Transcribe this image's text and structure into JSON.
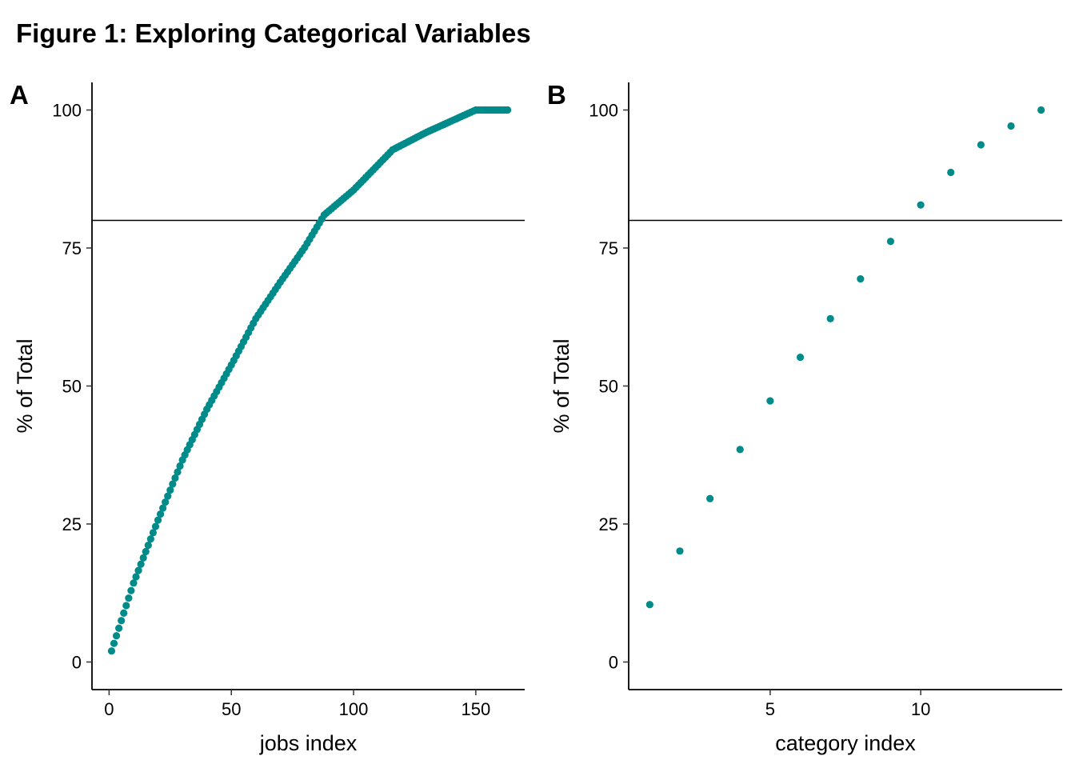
{
  "title": "Figure 1: Exploring Categorical Variables",
  "chart_data": [
    {
      "type": "scatter",
      "panel_label": "A",
      "xlabel": "jobs index",
      "ylabel": "% of Total",
      "xlim": [
        -7,
        170
      ],
      "ylim": [
        -5,
        105
      ],
      "x_ticks": [
        0,
        50,
        100,
        150
      ],
      "y_ticks": [
        0,
        25,
        50,
        75,
        100
      ],
      "hline": 80,
      "grid": false,
      "point_color": "#008B8B",
      "n_points": 163,
      "curve_anchors": [
        [
          1,
          2.0
        ],
        [
          5,
          7.5
        ],
        [
          10,
          14.3
        ],
        [
          20,
          25.7
        ],
        [
          30,
          36.6
        ],
        [
          40,
          45.8
        ],
        [
          50,
          53.8
        ],
        [
          60,
          62.2
        ],
        [
          70,
          68.8
        ],
        [
          80,
          75.1
        ],
        [
          88,
          81.0
        ],
        [
          100,
          85.5
        ],
        [
          116,
          92.8
        ],
        [
          130,
          96.0
        ],
        [
          150,
          100.0
        ],
        [
          163,
          100.0
        ]
      ]
    },
    {
      "type": "scatter",
      "panel_label": "B",
      "xlabel": "category index",
      "ylabel": "% of Total",
      "xlim": [
        0.3,
        14.7
      ],
      "ylim": [
        -5,
        105
      ],
      "x_ticks": [
        5,
        10
      ],
      "y_ticks": [
        0,
        25,
        50,
        75,
        100
      ],
      "hline": 80,
      "grid": false,
      "point_color": "#008B8B",
      "x": [
        1,
        2,
        3,
        4,
        5,
        6,
        7,
        8,
        9,
        10,
        11,
        12,
        13,
        14
      ],
      "y": [
        10.4,
        20.1,
        29.6,
        38.5,
        47.3,
        55.2,
        62.2,
        69.4,
        76.2,
        82.8,
        88.7,
        93.7,
        97.1,
        100.0
      ]
    }
  ]
}
